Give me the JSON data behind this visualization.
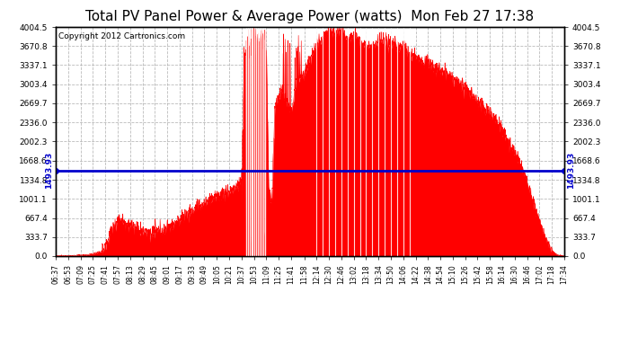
{
  "title": "Total PV Panel Power & Average Power (watts)  Mon Feb 27 17:38",
  "copyright": "Copyright 2012 Cartronics.com",
  "average_value": 1493.93,
  "y_max": 4004.5,
  "y_min": 0.0,
  "yticks": [
    0.0,
    333.7,
    667.4,
    1001.1,
    1334.8,
    1668.6,
    2002.3,
    2336.0,
    2669.7,
    3003.4,
    3337.1,
    3670.8,
    4004.5
  ],
  "fill_color": "#FF0000",
  "line_color": "#FF0000",
  "avg_line_color": "#0000CC",
  "grid_color": "#AAAAAA",
  "background_color": "#FFFFFF",
  "plot_bg_color": "#FFFFFF",
  "title_fontsize": 11,
  "copyright_fontsize": 6.5,
  "time_labels": [
    "06:37",
    "06:53",
    "07:09",
    "07:25",
    "07:41",
    "07:57",
    "08:13",
    "08:29",
    "08:45",
    "09:01",
    "09:17",
    "09:33",
    "09:49",
    "10:05",
    "10:21",
    "10:37",
    "10:53",
    "11:09",
    "11:25",
    "11:41",
    "11:58",
    "12:14",
    "12:30",
    "12:46",
    "13:02",
    "13:18",
    "13:34",
    "13:50",
    "14:06",
    "14:22",
    "14:38",
    "14:54",
    "15:10",
    "15:26",
    "15:42",
    "15:58",
    "16:14",
    "16:30",
    "16:46",
    "17:02",
    "17:18",
    "17:34"
  ]
}
